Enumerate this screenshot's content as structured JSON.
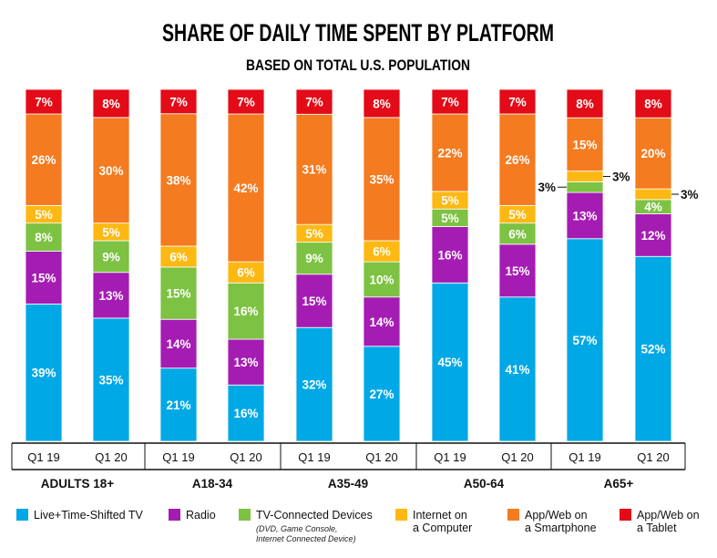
{
  "chart_data": {
    "type": "bar",
    "stacked": true,
    "title": "SHARE OF DAILY TIME SPENT BY PLATFORM",
    "subtitle": "BASED ON TOTAL U.S. POPULATION",
    "ylim": [
      0,
      100
    ],
    "groups": [
      {
        "name": "ADULTS 18+",
        "categories": [
          "Q1 19",
          "Q1 20"
        ]
      },
      {
        "name": "A18-34",
        "categories": [
          "Q1 19",
          "Q1 20"
        ]
      },
      {
        "name": "A35-49",
        "categories": [
          "Q1 19",
          "Q1 20"
        ]
      },
      {
        "name": "A50-64",
        "categories": [
          "Q1 19",
          "Q1 20"
        ]
      },
      {
        "name": "A65+",
        "categories": [
          "Q1 19",
          "Q1 20"
        ]
      }
    ],
    "series": [
      {
        "name": "Live+Time-Shifted TV",
        "color": "#00A8E6",
        "values": [
          39,
          35,
          21,
          16,
          32,
          27,
          45,
          41,
          57,
          52
        ]
      },
      {
        "name": "Radio",
        "color": "#A51CB3",
        "values": [
          15,
          13,
          14,
          13,
          15,
          14,
          16,
          15,
          13,
          12
        ]
      },
      {
        "name": "TV-Connected Devices",
        "note": [
          "(DVD, Game Console,",
          "Internet Connected Device)"
        ],
        "color": "#7DC242",
        "values": [
          8,
          9,
          15,
          16,
          9,
          10,
          5,
          6,
          3,
          4
        ]
      },
      {
        "name": "Internet on a Computer",
        "legend_lines": [
          "Internet on",
          "a Computer"
        ],
        "color": "#FDB813",
        "values": [
          5,
          5,
          6,
          6,
          5,
          6,
          5,
          5,
          3,
          3
        ]
      },
      {
        "name": "App/Web on a Smartphone",
        "legend_lines": [
          "App/Web on",
          "a Smartphone"
        ],
        "color": "#F47B20",
        "values": [
          26,
          30,
          38,
          42,
          31,
          35,
          22,
          26,
          15,
          20
        ]
      },
      {
        "name": "App/Web on a Tablet",
        "legend_lines": [
          "App/Web on",
          "a Tablet"
        ],
        "color": "#E30B17",
        "values": [
          7,
          8,
          7,
          7,
          7,
          8,
          7,
          7,
          8,
          8
        ]
      }
    ],
    "legend_position": "bottom",
    "grid": false
  }
}
